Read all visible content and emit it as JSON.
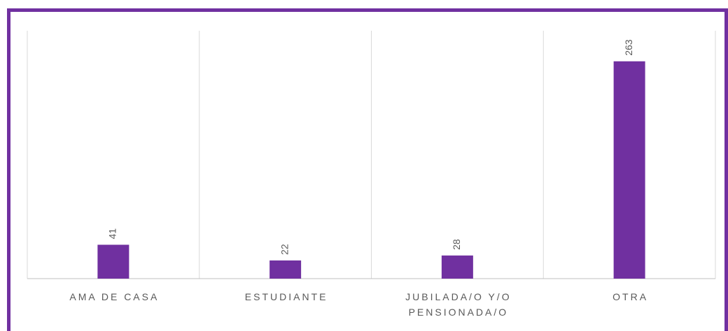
{
  "chart_data": {
    "type": "bar",
    "categories": [
      "AMA DE CASA",
      "ESTUDIANTE",
      "JUBILADA/O Y/O PENSIONADA/O",
      "OTRA"
    ],
    "values": [
      41,
      22,
      28,
      263
    ],
    "color": "#7030a0",
    "ylim": [
      0,
      300
    ]
  }
}
